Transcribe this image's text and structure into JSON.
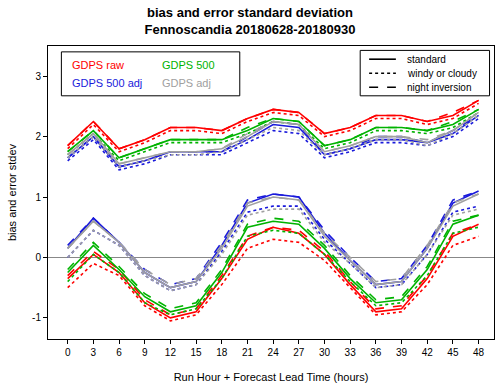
{
  "chart_data": {
    "type": "line",
    "title": "bias and error standard deviation",
    "subtitle": "Fennoscandia 20180628-20180930",
    "x_label": "Run Hour + Forecast Lead Time (hours)",
    "y_label": "bias and error stdev",
    "x": [
      0,
      3,
      6,
      9,
      12,
      15,
      18,
      21,
      24,
      27,
      30,
      33,
      36,
      39,
      42,
      45,
      48
    ],
    "xlim": [
      -2.3,
      49.8
    ],
    "xticks": [
      0,
      3,
      6,
      9,
      12,
      15,
      18,
      21,
      24,
      27,
      30,
      33,
      36,
      39,
      42,
      45,
      48
    ],
    "ylim": [
      -1.35,
      3.5
    ],
    "yticks": [
      -1,
      0,
      1,
      2,
      3
    ],
    "grid": false,
    "line_styles": [
      {
        "name": "standard",
        "line_style": "solid"
      },
      {
        "name": "windy or cloudy",
        "line_style": "dotted"
      },
      {
        "name": "night inversion",
        "line_style": "dashed"
      }
    ],
    "series": [
      {
        "name": "GDPS raw",
        "color": "#ff0000",
        "stdev": [
          [
            1.85,
            2.25,
            1.8,
            1.95,
            2.15,
            2.15,
            2.1,
            2.3,
            2.45,
            2.4,
            2.05,
            2.15,
            2.35,
            2.35,
            2.25,
            2.35,
            2.6
          ],
          [
            1.8,
            2.2,
            1.75,
            1.9,
            2.1,
            2.1,
            2.05,
            2.25,
            2.4,
            2.35,
            2.0,
            2.1,
            2.3,
            2.3,
            2.2,
            2.3,
            2.55
          ],
          [
            1.85,
            2.25,
            1.8,
            1.95,
            2.15,
            2.15,
            2.1,
            2.3,
            2.45,
            2.4,
            2.05,
            2.15,
            2.35,
            2.35,
            2.25,
            2.4,
            2.6
          ]
        ],
        "bias": [
          [
            -0.35,
            0.05,
            -0.25,
            -0.75,
            -1.0,
            -0.9,
            -0.35,
            0.3,
            0.5,
            0.4,
            0.05,
            -0.45,
            -0.9,
            -0.85,
            -0.35,
            0.35,
            0.55
          ],
          [
            -0.5,
            -0.1,
            -0.3,
            -0.8,
            -1.05,
            -0.95,
            -0.45,
            0.15,
            0.3,
            0.25,
            -0.05,
            -0.5,
            -0.95,
            -0.9,
            -0.45,
            0.2,
            0.35
          ],
          [
            -0.3,
            0.1,
            -0.2,
            -0.7,
            -0.95,
            -0.85,
            -0.3,
            0.35,
            0.5,
            0.45,
            0.1,
            -0.4,
            -0.85,
            -0.8,
            -0.3,
            0.4,
            0.55
          ]
        ]
      },
      {
        "name": "GDPS 500",
        "color": "#00b300",
        "stdev": [
          [
            1.75,
            2.1,
            1.65,
            1.8,
            1.95,
            1.95,
            1.95,
            2.1,
            2.3,
            2.25,
            1.85,
            1.95,
            2.15,
            2.15,
            2.1,
            2.2,
            2.45
          ],
          [
            1.7,
            2.05,
            1.6,
            1.75,
            1.9,
            1.9,
            1.9,
            2.05,
            2.25,
            2.2,
            1.8,
            1.9,
            2.1,
            2.1,
            2.05,
            2.15,
            2.4
          ],
          [
            1.75,
            2.1,
            1.65,
            1.8,
            1.95,
            1.95,
            1.95,
            2.15,
            2.3,
            2.25,
            1.85,
            1.95,
            2.15,
            2.15,
            2.1,
            2.25,
            2.45
          ]
        ],
        "bias": [
          [
            -0.25,
            0.2,
            -0.2,
            -0.65,
            -0.9,
            -0.8,
            -0.25,
            0.5,
            0.6,
            0.55,
            0.15,
            -0.35,
            -0.75,
            -0.7,
            -0.2,
            0.55,
            0.7
          ],
          [
            -0.4,
            0.05,
            -0.25,
            -0.75,
            -0.95,
            -0.85,
            -0.35,
            0.35,
            0.45,
            0.4,
            0.05,
            -0.4,
            -0.8,
            -0.75,
            -0.3,
            0.4,
            0.5
          ],
          [
            -0.2,
            0.25,
            -0.15,
            -0.6,
            -0.85,
            -0.75,
            -0.2,
            0.55,
            0.65,
            0.6,
            0.2,
            -0.3,
            -0.7,
            -0.65,
            -0.15,
            0.6,
            0.7
          ]
        ]
      },
      {
        "name": "GDPS 500 adj",
        "color": "#1a1adb",
        "stdev": [
          [
            1.65,
            2.0,
            1.5,
            1.6,
            1.75,
            1.75,
            1.75,
            1.95,
            2.2,
            2.15,
            1.7,
            1.8,
            1.95,
            1.95,
            1.9,
            2.05,
            2.35
          ],
          [
            1.6,
            1.95,
            1.45,
            1.55,
            1.7,
            1.7,
            1.7,
            1.9,
            2.1,
            2.05,
            1.65,
            1.75,
            1.9,
            1.9,
            1.85,
            2.0,
            2.3
          ],
          [
            1.65,
            2.0,
            1.5,
            1.6,
            1.75,
            1.75,
            1.75,
            2.0,
            2.25,
            2.2,
            1.7,
            1.8,
            2.0,
            2.0,
            1.9,
            2.1,
            2.35
          ]
        ],
        "bias": [
          [
            0.15,
            0.65,
            0.25,
            -0.25,
            -0.5,
            -0.4,
            0.2,
            0.9,
            1.05,
            1.0,
            0.4,
            -0.05,
            -0.45,
            -0.4,
            0.15,
            0.9,
            1.1
          ],
          [
            0.0,
            0.45,
            0.2,
            -0.3,
            -0.55,
            -0.45,
            0.1,
            0.75,
            0.85,
            0.85,
            0.3,
            -0.1,
            -0.5,
            -0.45,
            0.05,
            0.75,
            0.85
          ],
          [
            0.2,
            0.65,
            0.25,
            -0.2,
            -0.45,
            -0.35,
            0.25,
            0.95,
            1.05,
            1.0,
            0.45,
            0.0,
            -0.4,
            -0.35,
            0.2,
            0.95,
            1.1
          ]
        ]
      },
      {
        "name": "GDPS adj",
        "color": "#a0a0a0",
        "stdev": [
          [
            1.7,
            2.05,
            1.55,
            1.65,
            1.75,
            1.75,
            1.8,
            2.0,
            2.25,
            2.2,
            1.75,
            1.85,
            2.0,
            2.0,
            1.9,
            2.1,
            2.4
          ],
          [
            1.65,
            2.0,
            1.5,
            1.6,
            1.7,
            1.7,
            1.75,
            1.95,
            2.15,
            2.1,
            1.7,
            1.8,
            1.95,
            1.95,
            1.85,
            2.05,
            2.35
          ],
          [
            1.7,
            2.05,
            1.55,
            1.65,
            1.75,
            1.75,
            1.8,
            2.05,
            2.25,
            2.2,
            1.75,
            1.85,
            2.0,
            2.0,
            1.95,
            2.1,
            2.4
          ]
        ],
        "bias": [
          [
            0.15,
            0.6,
            0.25,
            -0.25,
            -0.5,
            -0.4,
            0.15,
            0.85,
            1.0,
            0.95,
            0.35,
            -0.05,
            -0.45,
            -0.4,
            0.15,
            0.85,
            1.05
          ],
          [
            0.0,
            0.45,
            0.2,
            -0.3,
            -0.55,
            -0.45,
            0.05,
            0.7,
            0.8,
            0.8,
            0.25,
            -0.1,
            -0.5,
            -0.45,
            0.05,
            0.7,
            0.8
          ],
          [
            0.15,
            0.6,
            0.25,
            -0.2,
            -0.45,
            -0.35,
            0.2,
            0.9,
            1.0,
            0.95,
            0.4,
            0.0,
            -0.4,
            -0.35,
            0.2,
            0.9,
            1.05
          ]
        ]
      }
    ]
  }
}
